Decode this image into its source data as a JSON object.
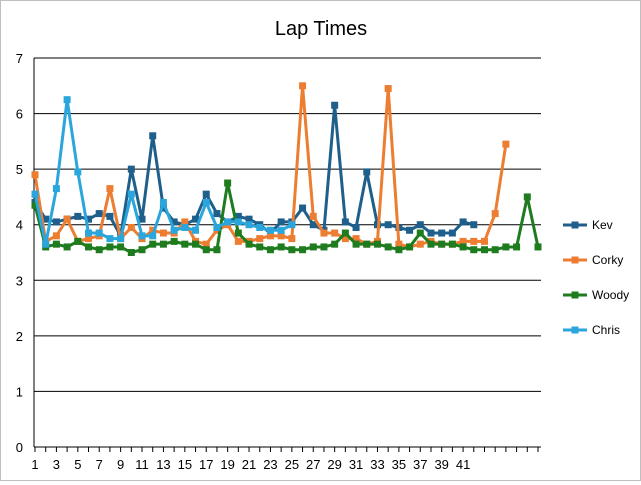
{
  "chart_data": {
    "type": "line",
    "title": "Lap Times",
    "xlabel": "",
    "ylabel": "",
    "ylim": [
      0,
      7
    ],
    "yticks": [
      0,
      1,
      2,
      3,
      4,
      5,
      6,
      7
    ],
    "x": [
      1,
      2,
      3,
      4,
      5,
      6,
      7,
      8,
      9,
      10,
      11,
      12,
      13,
      14,
      15,
      16,
      17,
      18,
      19,
      20,
      21,
      22,
      23,
      24,
      25,
      26,
      27,
      28,
      29,
      30,
      31,
      32,
      33,
      34,
      35,
      36,
      37,
      38,
      39,
      40,
      41,
      42,
      43,
      44,
      45,
      46,
      47,
      48,
      49,
      50
    ],
    "xtick_labels": [
      "1",
      "3",
      "5",
      "7",
      "9",
      "11",
      "13",
      "15",
      "17",
      "19",
      "21",
      "23",
      "25",
      "27",
      "29",
      "31",
      "33",
      "35",
      "37",
      "39",
      "41"
    ],
    "grid": "horizontal",
    "legend": "right",
    "series": [
      {
        "name": "Kev",
        "color": "#1f5f8b",
        "values": [
          4.4,
          4.1,
          4.05,
          4.1,
          4.15,
          4.1,
          4.2,
          4.15,
          3.8,
          5.0,
          4.1,
          5.6,
          4.3,
          4.05,
          4.0,
          4.1,
          4.55,
          4.2,
          4.05,
          4.15,
          4.1,
          4.0,
          3.85,
          4.05,
          4.05,
          4.3,
          4.0,
          3.9,
          6.15,
          4.05,
          3.95,
          4.95,
          4.0,
          4.0,
          3.95,
          3.9,
          4.0,
          3.85,
          3.85,
          3.85,
          4.05,
          4.0,
          null,
          null,
          null,
          null,
          null,
          null,
          null,
          null
        ]
      },
      {
        "name": "Corky",
        "color": "#ed7d31",
        "values": [
          4.9,
          3.7,
          3.8,
          4.1,
          3.7,
          3.75,
          3.8,
          4.65,
          3.75,
          3.95,
          3.75,
          3.9,
          3.85,
          3.85,
          4.05,
          3.7,
          3.65,
          3.9,
          4.0,
          3.7,
          3.7,
          3.75,
          3.8,
          3.8,
          3.75,
          6.5,
          4.15,
          3.85,
          3.85,
          3.75,
          3.75,
          3.65,
          3.7,
          6.45,
          3.65,
          3.6,
          3.65,
          3.7,
          3.65,
          3.65,
          3.7,
          3.7,
          3.7,
          4.2,
          5.45,
          null,
          null,
          null,
          null,
          null
        ]
      },
      {
        "name": "Woody",
        "color": "#1e7b1e",
        "values": [
          4.35,
          3.6,
          3.65,
          3.6,
          3.7,
          3.6,
          3.55,
          3.6,
          3.6,
          3.5,
          3.55,
          3.65,
          3.65,
          3.7,
          3.65,
          3.65,
          3.55,
          3.55,
          4.75,
          3.85,
          3.65,
          3.6,
          3.55,
          3.6,
          3.55,
          3.55,
          3.6,
          3.6,
          3.65,
          3.85,
          3.65,
          3.65,
          3.65,
          3.6,
          3.55,
          3.6,
          3.85,
          3.65,
          3.65,
          3.65,
          3.6,
          3.55,
          3.55,
          3.55,
          3.6,
          3.6,
          4.5,
          3.6,
          null,
          null
        ]
      },
      {
        "name": "Chris",
        "color": "#2aa6dc",
        "values": [
          4.55,
          3.65,
          4.65,
          6.25,
          4.95,
          3.85,
          3.85,
          3.75,
          3.75,
          4.55,
          3.8,
          3.8,
          4.4,
          3.9,
          3.95,
          3.9,
          4.4,
          3.95,
          4.05,
          4.05,
          4.0,
          3.95,
          3.9,
          3.9,
          4.0,
          null,
          null,
          null,
          null,
          null,
          null,
          null,
          null,
          null,
          null,
          null,
          null,
          null,
          null,
          null,
          null,
          null,
          null,
          null,
          null,
          null,
          null,
          null,
          null,
          null
        ]
      }
    ]
  }
}
